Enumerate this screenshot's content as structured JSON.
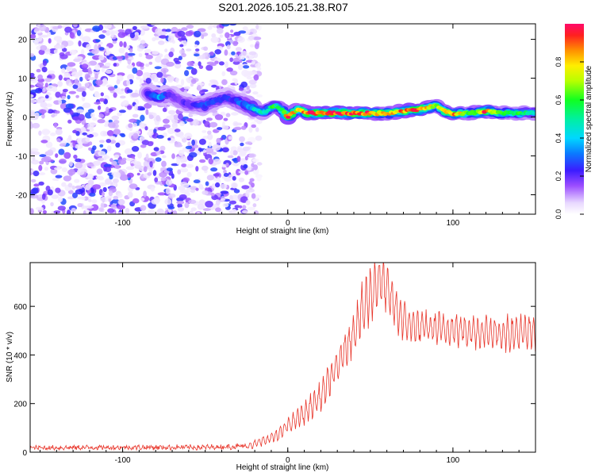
{
  "title": "S201.2026.105.21.38.R07",
  "chart_data": [
    {
      "type": "heatmap",
      "name": "spectrogram",
      "xlabel": "Height of straight line (km)",
      "ylabel": "Frequency (Hz)",
      "xlim": [
        -156,
        150
      ],
      "ylim": [
        -25,
        24
      ],
      "xticks": [
        -100,
        0,
        100
      ],
      "yticks": [
        -20,
        -10,
        0,
        10,
        20
      ],
      "colorbar": {
        "label": "Normalized spectral amplitude",
        "range": [
          0,
          1
        ],
        "ticks": [
          "0.0",
          "0.2",
          "0.4",
          "0.6",
          "0.8"
        ],
        "tick_values": [
          0,
          0.2,
          0.4,
          0.6,
          0.8
        ]
      },
      "noise_region_x": [
        -156,
        -25
      ],
      "ridge": [
        [
          -85,
          6,
          0.22
        ],
        [
          -78,
          5,
          0.35
        ],
        [
          -72,
          6,
          0.2
        ],
        [
          -65,
          4,
          0.18
        ],
        [
          -58,
          3,
          0.22
        ],
        [
          -50,
          3,
          0.25
        ],
        [
          -45,
          4,
          0.3
        ],
        [
          -38,
          5,
          0.22
        ],
        [
          -30,
          4,
          0.28
        ],
        [
          -25,
          3,
          0.3
        ],
        [
          -20,
          2,
          0.45
        ],
        [
          -15,
          1,
          0.5
        ],
        [
          -8,
          3,
          0.55
        ],
        [
          -4,
          2,
          0.6
        ],
        [
          0,
          0,
          0.95
        ],
        [
          6,
          2,
          0.7
        ],
        [
          12,
          1,
          0.9
        ],
        [
          20,
          1,
          0.92
        ],
        [
          30,
          1,
          0.95
        ],
        [
          40,
          1,
          0.95
        ],
        [
          50,
          1,
          0.9
        ],
        [
          60,
          1,
          0.75
        ],
        [
          70,
          1.5,
          0.85
        ],
        [
          80,
          2,
          0.9
        ],
        [
          85,
          2.5,
          0.8
        ],
        [
          90,
          3,
          0.65
        ],
        [
          95,
          1.5,
          0.75
        ],
        [
          100,
          0.8,
          0.9
        ],
        [
          110,
          1,
          0.55
        ],
        [
          120,
          1.5,
          0.92
        ],
        [
          130,
          1,
          0.6
        ],
        [
          140,
          1,
          0.55
        ],
        [
          150,
          1,
          0.5
        ]
      ]
    },
    {
      "type": "line",
      "name": "snr",
      "xlabel": "Height of straight line (km)",
      "ylabel": "SNR (10 * v/v)",
      "xlim": [
        -156,
        150
      ],
      "ylim": [
        0,
        780
      ],
      "xticks": [
        -100,
        0,
        100
      ],
      "yticks": [
        0,
        200,
        400,
        600
      ],
      "color": "#e8352a",
      "envelope": [
        [
          -156,
          18
        ],
        [
          -100,
          20
        ],
        [
          -50,
          20
        ],
        [
          -25,
          25
        ],
        [
          -15,
          45
        ],
        [
          -5,
          75
        ],
        [
          0,
          110
        ],
        [
          10,
          160
        ],
        [
          20,
          230
        ],
        [
          30,
          350
        ],
        [
          40,
          500
        ],
        [
          45,
          580
        ],
        [
          50,
          650
        ],
        [
          55,
          710
        ],
        [
          58,
          690
        ],
        [
          62,
          640
        ],
        [
          66,
          580
        ],
        [
          70,
          540
        ],
        [
          75,
          520
        ],
        [
          85,
          510
        ],
        [
          100,
          505
        ],
        [
          120,
          495
        ],
        [
          135,
          490
        ],
        [
          150,
          490
        ]
      ],
      "oscillation": [
        [
          -156,
          10
        ],
        [
          -25,
          12
        ],
        [
          0,
          25
        ],
        [
          30,
          60
        ],
        [
          50,
          95
        ],
        [
          60,
          80
        ],
        [
          75,
          55
        ],
        [
          100,
          55
        ],
        [
          150,
          60
        ]
      ]
    }
  ]
}
